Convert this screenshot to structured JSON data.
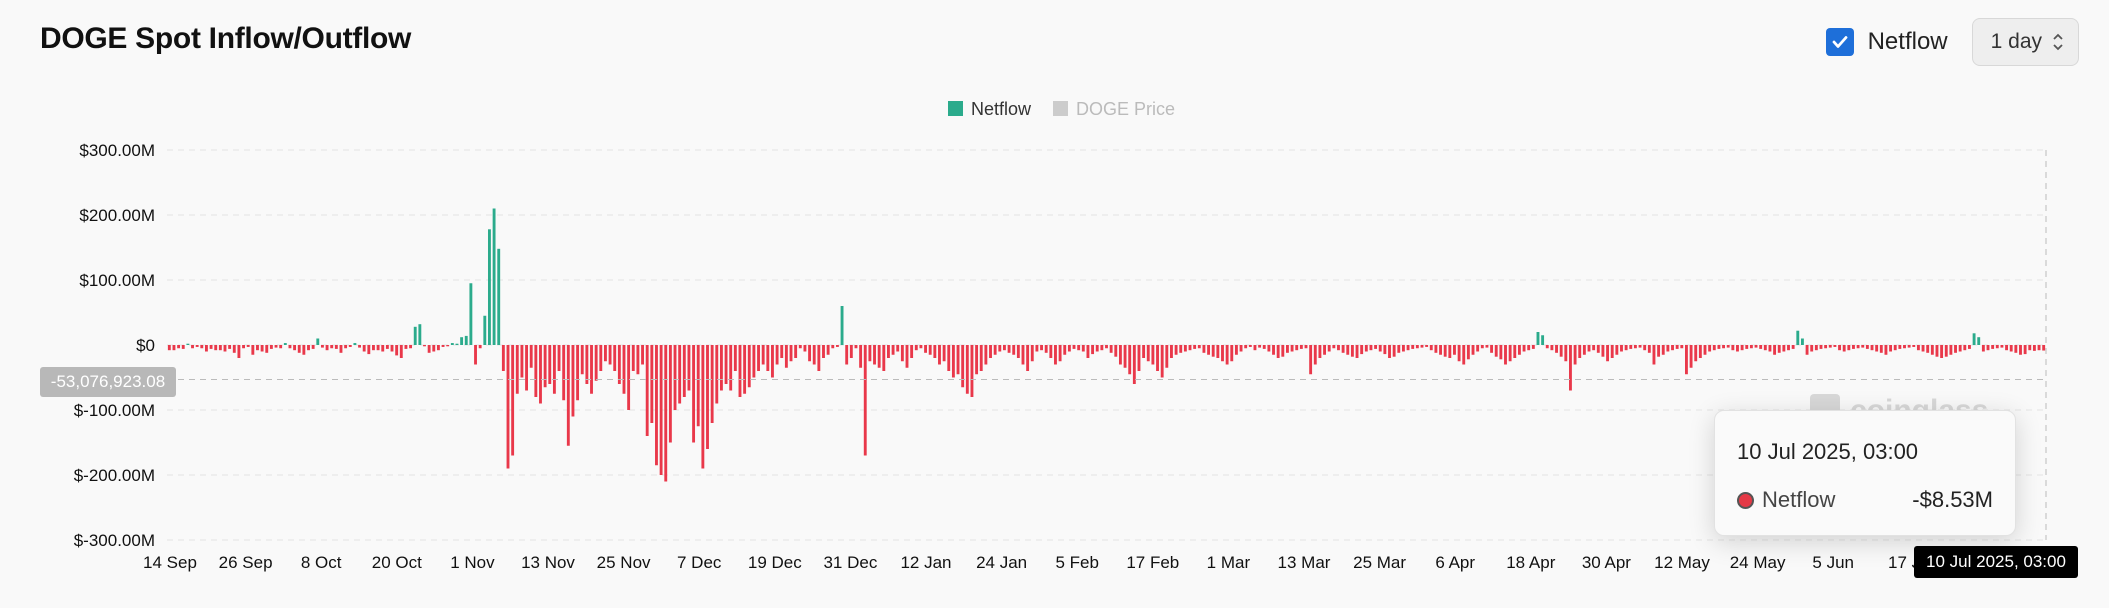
{
  "header": {
    "title": "DOGE Spot Inflow/Outflow",
    "netflow_toggle_label": "Netflow",
    "netflow_checked": true,
    "interval_label": "1 day"
  },
  "watermark": "coinglass",
  "colors": {
    "positive": "#2bab8c",
    "negative": "#e9384a",
    "accent": "#1e6fd9",
    "legend_inactive": "#cccccc"
  },
  "chart_data": {
    "type": "bar",
    "legend": [
      {
        "name": "Netflow",
        "color": "#2bab8c",
        "active": true
      },
      {
        "name": "DOGE Price",
        "color": "#cccccc",
        "active": false
      }
    ],
    "ylim": [
      -300,
      300
    ],
    "y_unit": "$M",
    "y_ticks": [
      "$300.00M",
      "$200.00M",
      "$100.00M",
      "$0",
      "$-100.00M",
      "$-200.00M",
      "$-300.00M"
    ],
    "x_ticks": [
      "14 Sep",
      "26 Sep",
      "8 Oct",
      "20 Oct",
      "1 Nov",
      "13 Nov",
      "25 Nov",
      "7 Dec",
      "19 Dec",
      "31 Dec",
      "12 Jan",
      "24 Jan",
      "5 Feb",
      "17 Feb",
      "1 Mar",
      "13 Mar",
      "25 Mar",
      "6 Apr",
      "18 Apr",
      "30 Apr",
      "12 May",
      "24 May",
      "5 Jun",
      "17 Ju"
    ],
    "x_range": [
      "2024-09-14",
      "2025-07-10"
    ],
    "values": [
      -8,
      -8,
      -5,
      -6,
      2,
      -5,
      -3,
      -5,
      -10,
      -6,
      -8,
      -8,
      -10,
      -6,
      -12,
      -20,
      -5,
      -3,
      -15,
      -8,
      -10,
      -12,
      -6,
      -4,
      -5,
      3,
      -5,
      -8,
      -12,
      -15,
      -8,
      -6,
      10,
      -4,
      -8,
      -5,
      -6,
      -12,
      -5,
      -3,
      3,
      -4,
      -10,
      -14,
      -8,
      -8,
      -10,
      -6,
      -10,
      -16,
      -20,
      -6,
      -5,
      28,
      32,
      -2,
      -12,
      -10,
      -8,
      -3,
      -2,
      3,
      2,
      12,
      14,
      95,
      -30,
      -5,
      45,
      178,
      210,
      148,
      -40,
      -190,
      -170,
      -75,
      -50,
      -70,
      -35,
      -80,
      -90,
      -65,
      -60,
      -75,
      -40,
      -85,
      -155,
      -110,
      -85,
      -45,
      -60,
      -75,
      -55,
      -40,
      -25,
      -30,
      -40,
      -60,
      -75,
      -100,
      -40,
      -45,
      -30,
      -140,
      -120,
      -185,
      -200,
      -210,
      -150,
      -100,
      -90,
      -80,
      -70,
      -150,
      -125,
      -190,
      -160,
      -120,
      -90,
      -70,
      -60,
      -70,
      -40,
      -80,
      -75,
      -65,
      -50,
      -40,
      -30,
      -40,
      -50,
      -30,
      -20,
      -35,
      -25,
      -20,
      -5,
      -10,
      -25,
      -30,
      -40,
      -20,
      -15,
      -5,
      -3,
      60,
      -30,
      -20,
      -5,
      -35,
      -170,
      -25,
      -30,
      -35,
      -40,
      -20,
      -15,
      -10,
      -25,
      -35,
      -20,
      -8,
      -5,
      -12,
      -15,
      -20,
      -30,
      -25,
      -40,
      -50,
      -45,
      -65,
      -75,
      -80,
      -45,
      -40,
      -30,
      -20,
      -15,
      -10,
      -8,
      -12,
      -15,
      -20,
      -30,
      -40,
      -25,
      -10,
      -8,
      -12,
      -20,
      -30,
      -25,
      -15,
      -10,
      -6,
      -8,
      -10,
      -20,
      -14,
      -10,
      -8,
      -5,
      -12,
      -18,
      -30,
      -35,
      -45,
      -60,
      -40,
      -20,
      -25,
      -30,
      -40,
      -50,
      -35,
      -20,
      -15,
      -12,
      -10,
      -8,
      -6,
      -5,
      -12,
      -15,
      -18,
      -20,
      -25,
      -30,
      -25,
      -15,
      -10,
      -5,
      -3,
      -8,
      -4,
      -6,
      -10,
      -15,
      -20,
      -18,
      -12,
      -10,
      -8,
      -6,
      -5,
      -45,
      -30,
      -20,
      -15,
      -10,
      -5,
      -8,
      -12,
      -15,
      -18,
      -20,
      -14,
      -10,
      -8,
      -6,
      -10,
      -14,
      -20,
      -18,
      -12,
      -10,
      -8,
      -6,
      -5,
      -4,
      -3,
      -8,
      -12,
      -15,
      -18,
      -20,
      -15,
      -25,
      -30,
      -22,
      -15,
      -10,
      -5,
      -4,
      -12,
      -18,
      -22,
      -30,
      -25,
      -20,
      -15,
      -10,
      -8,
      -6,
      20,
      15,
      -5,
      -8,
      -12,
      -18,
      -25,
      -70,
      -30,
      -20,
      -15,
      -10,
      -8,
      -12,
      -18,
      -25,
      -20,
      -15,
      -10,
      -8,
      -6,
      -5,
      -4,
      -8,
      -12,
      -30,
      -18,
      -15,
      -10,
      -8,
      -6,
      -5,
      -45,
      -35,
      -25,
      -20,
      -15,
      -10,
      -8,
      -6,
      -5,
      -4,
      -8,
      -10,
      -8,
      -6,
      -5,
      -4,
      -6,
      -8,
      -10,
      -15,
      -12,
      -10,
      -8,
      -6,
      22,
      10,
      -15,
      -10,
      -8,
      -6,
      -5,
      -4,
      -3,
      -8,
      -10,
      -8,
      -6,
      -5,
      -4,
      -6,
      -8,
      -10,
      -12,
      -15,
      -10,
      -8,
      -6,
      -5,
      -4,
      -3,
      -8,
      -10,
      -12,
      -15,
      -18,
      -20,
      -18,
      -15,
      -12,
      -10,
      -8,
      -6,
      18,
      12,
      -10,
      -8,
      -6,
      -5,
      -4,
      -8,
      -10,
      -12,
      -15,
      -14,
      -8,
      -9,
      -8,
      -8.53
    ],
    "highlight": {
      "label": "10 Jul 2025, 03:00",
      "series": "Netflow",
      "value": "-$8.53M"
    },
    "y_pointer_label": "-53,076,923.08",
    "x_pointer_label": "10 Jul 2025, 03:00"
  }
}
